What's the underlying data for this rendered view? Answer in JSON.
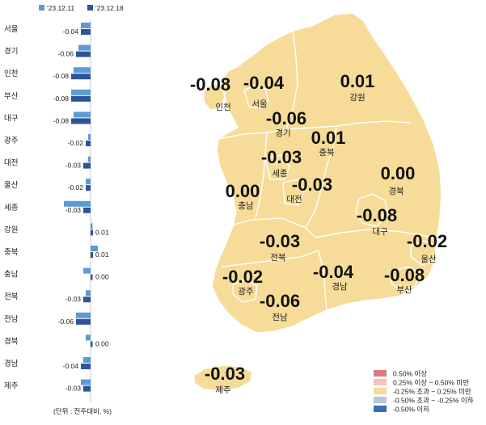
{
  "chart_data": [
    {
      "type": "bar",
      "orientation": "horizontal",
      "categories": [
        "서울",
        "경기",
        "인천",
        "부산",
        "대구",
        "광주",
        "대전",
        "울산",
        "세종",
        "강원",
        "충북",
        "충남",
        "전북",
        "전남",
        "경북",
        "경남",
        "제주"
      ],
      "series": [
        {
          "name": "'23.12.11",
          "color": "#5b9bd5",
          "values": [
            -0.04,
            -0.05,
            -0.07,
            -0.08,
            -0.07,
            -0.01,
            -0.01,
            -0.02,
            -0.11,
            0.0,
            0.03,
            -0.03,
            -0.02,
            -0.06,
            -0.02,
            -0.03,
            -0.04
          ]
        },
        {
          "name": "'23.12.18",
          "color": "#2f5597",
          "values": [
            -0.04,
            -0.06,
            -0.08,
            -0.08,
            -0.08,
            -0.02,
            -0.03,
            -0.02,
            -0.03,
            0.01,
            0.01,
            0.0,
            -0.03,
            -0.06,
            0.0,
            -0.04,
            -0.03
          ]
        }
      ],
      "data_labels": [
        "-0.04",
        "-0.06",
        "-0.08",
        "-0.08",
        "-0.08",
        "-0.02",
        "-0.03",
        "-0.02",
        "-0.03",
        "0.01",
        "0.01",
        "0.00",
        "-0.03",
        "-0.06",
        "0.00",
        "-0.04",
        "-0.03"
      ],
      "legend_position": "top",
      "unit_note": "(단위 : 전주대비, %)"
    },
    {
      "type": "choropleth",
      "regions": [
        {
          "id": "incheon",
          "name": "인천",
          "value": "-0.08"
        },
        {
          "id": "seoul",
          "name": "서울",
          "value": "-0.04"
        },
        {
          "id": "gyeonggi",
          "name": "경기",
          "value": "-0.06"
        },
        {
          "id": "gangwon",
          "name": "강원",
          "value": "0.01"
        },
        {
          "id": "chungbuk",
          "name": "충북",
          "value": "0.01"
        },
        {
          "id": "sejong",
          "name": "세종",
          "value": "-0.03"
        },
        {
          "id": "daejeon",
          "name": "대전",
          "value": "-0.03"
        },
        {
          "id": "chungnam",
          "name": "충남",
          "value": "0.00"
        },
        {
          "id": "gyeongbuk",
          "name": "경북",
          "value": "0.00"
        },
        {
          "id": "daegu",
          "name": "대구",
          "value": "-0.08"
        },
        {
          "id": "jeonbuk",
          "name": "전북",
          "value": "-0.03"
        },
        {
          "id": "ulsan",
          "name": "울산",
          "value": "-0.02"
        },
        {
          "id": "gwangju",
          "name": "광주",
          "value": "-0.02"
        },
        {
          "id": "gyeongnam",
          "name": "경남",
          "value": "-0.04"
        },
        {
          "id": "busan",
          "name": "부산",
          "value": "-0.08"
        },
        {
          "id": "jeonnam",
          "name": "전남",
          "value": "-0.06"
        },
        {
          "id": "jeju",
          "name": "제주",
          "value": "-0.03"
        }
      ],
      "legend": [
        {
          "label": "0.50% 이상",
          "color": "#e07a7a"
        },
        {
          "label": "0.25% 이상 ~ 0.50% 미만",
          "color": "#f4c2c2"
        },
        {
          "label": "-0.25% 초과 ~ 0.25% 미만",
          "color": "#f6dc98"
        },
        {
          "label": "-0.50% 초과 ~ -0.25% 이하",
          "color": "#b8c8dc"
        },
        {
          "label": "-0.50% 이하",
          "color": "#3a6db5"
        }
      ],
      "legend_position": "bottom-right"
    }
  ]
}
